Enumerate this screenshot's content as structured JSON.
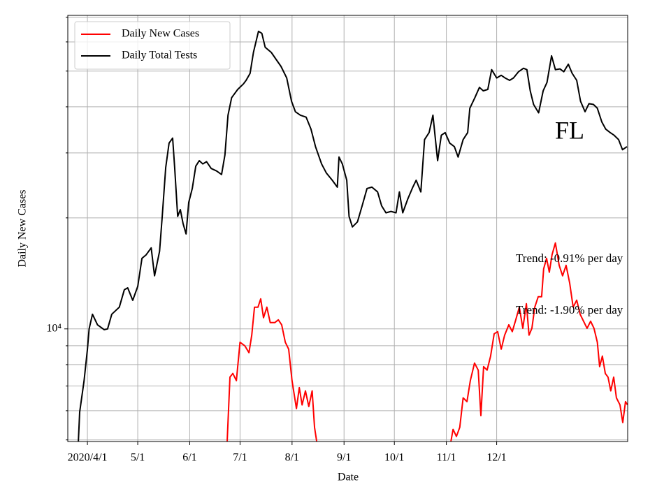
{
  "chart_data": {
    "type": "line",
    "xlabel": "Date",
    "ylabel": "Daily New Cases",
    "log_y": true,
    "grid": true,
    "legend": "upper left",
    "annotations": [
      "FL",
      "Trend: -0.91% per day",
      "Trend: -1.90% per day"
    ],
    "xlim": [
      -11.7,
      322.1
    ],
    "xticks": [
      {
        "value": 0,
        "label": "2020/4/1"
      },
      {
        "value": 30,
        "label": "5/1"
      },
      {
        "value": 61,
        "label": "6/1"
      },
      {
        "value": 91,
        "label": "7/1"
      },
      {
        "value": 122,
        "label": "8/1"
      },
      {
        "value": 153,
        "label": "9/1"
      },
      {
        "value": 183,
        "label": "10/1"
      },
      {
        "value": 214,
        "label": "11/1"
      },
      {
        "value": 244,
        "label": "12/1"
      }
    ],
    "ylim": [
      4950,
      70800
    ],
    "yticks": [
      {
        "value": 10000,
        "label": "10⁴"
      }
    ],
    "yminor": [
      5000,
      6000,
      7000,
      8000,
      9000,
      20000,
      30000,
      40000,
      50000,
      60000,
      70000
    ],
    "series": [
      {
        "name": "Daily New Cases",
        "color": "#ff0000",
        "x": [
          83.3,
          85,
          86.7,
          88.8,
          91,
          93.8,
          96.3,
          98,
          99.6,
          101.7,
          103.3,
          105,
          107,
          109,
          111.7,
          113.8,
          115.8,
          118,
          120,
          122,
          124.6,
          126.3,
          128,
          130,
          132,
          134,
          135.4,
          136.7,
          176,
          216.7,
          218,
          220,
          222,
          224,
          226.3,
          228.3,
          230.8,
          233,
          234.6,
          236.2,
          238.3,
          240.4,
          242.5,
          244.6,
          246.7,
          248.75,
          251.25,
          253.3,
          255.4,
          257.5,
          259.6,
          261.7,
          263.3,
          265,
          266.7,
          268.75,
          270.8,
          272,
          273.75,
          275.4,
          277,
          279,
          281.25,
          283.3,
          285.4,
          287.5,
          289.6,
          291.7,
          293.75,
          295.8,
          297.9,
          300,
          302,
          304,
          305.4,
          307,
          308.75,
          310.4,
          312,
          313.75,
          315.4,
          317.5,
          319.2,
          320.8,
          322
        ],
        "values": [
          4950,
          7400,
          7570,
          7240,
          9200,
          9000,
          8620,
          9620,
          11450,
          11450,
          12060,
          10720,
          11450,
          10400,
          10400,
          10580,
          10260,
          9200,
          8810,
          7240,
          6080,
          6930,
          6220,
          6790,
          6160,
          6790,
          5410,
          4950,
          null,
          4950,
          5340,
          5110,
          5410,
          6500,
          6350,
          7240,
          8080,
          7730,
          5820,
          7900,
          7730,
          8440,
          9700,
          9830,
          8810,
          9620,
          10260,
          9830,
          10580,
          11450,
          10040,
          11700,
          9620,
          10040,
          11450,
          12220,
          12220,
          14550,
          15530,
          14240,
          15880,
          17100,
          14870,
          13930,
          14870,
          13330,
          11450,
          11960,
          10960,
          10490,
          10040,
          10490,
          10040,
          9200,
          7900,
          8440,
          7570,
          7400,
          6790,
          7400,
          6500,
          6220,
          5570,
          6350,
          6220
        ]
      },
      {
        "name": "Daily Total Tests",
        "color": "#000000",
        "x": [
          -5.4,
          -4.6,
          -2,
          0,
          1,
          3,
          6,
          10,
          12,
          14.5,
          19,
          22,
          24,
          27,
          30,
          32.5,
          35,
          38,
          40,
          43,
          44.6,
          46.7,
          48.7,
          50.8,
          52,
          53.8,
          55.4,
          57,
          58.8,
          60.4,
          62.5,
          64.6,
          66.7,
          68.8,
          71,
          73.8,
          77,
          80,
          82,
          83.8,
          86,
          89.6,
          93,
          94.6,
          97,
          99,
          102,
          104,
          106,
          109.6,
          112.5,
          115.4,
          118.8,
          121.7,
          124,
          127,
          130.4,
          133.3,
          136,
          139.6,
          142.5,
          146,
          149,
          150,
          152,
          154.6,
          156,
          158,
          161,
          163.8,
          166.7,
          169.6,
          173,
          175.4,
          178,
          181,
          184,
          186,
          188,
          191,
          194,
          196,
          198.8,
          201,
          203.7,
          206,
          208.8,
          211,
          213.3,
          216,
          218.8,
          221,
          224,
          226.7,
          228,
          231,
          233.7,
          236,
          238.7,
          241,
          244,
          246.7,
          249,
          251.7,
          254,
          257,
          260,
          262,
          264,
          266,
          269,
          271.7,
          274,
          276.7,
          279,
          281.7,
          284,
          286.7,
          289,
          291.7,
          294,
          296.7,
          299,
          301.7,
          304,
          306.7,
          309,
          311.7,
          314,
          316.7,
          319,
          321.7
        ],
        "values": [
          4950,
          5950,
          7240,
          8810,
          10000,
          10960,
          10260,
          9950,
          10000,
          10960,
          11450,
          12770,
          12920,
          11950,
          13040,
          15530,
          15880,
          16580,
          13930,
          16230,
          20180,
          27380,
          31900,
          32900,
          27380,
          20180,
          21060,
          19300,
          18090,
          22030,
          24030,
          27620,
          28580,
          28000,
          28400,
          27220,
          26800,
          26220,
          29620,
          37970,
          42360,
          44600,
          46130,
          47200,
          49300,
          56200,
          64100,
          63300,
          58000,
          56200,
          53800,
          51500,
          47900,
          41400,
          38800,
          37970,
          37500,
          34810,
          31200,
          28000,
          26440,
          25290,
          24220,
          29240,
          28000,
          25290,
          20180,
          18900,
          19500,
          21560,
          24030,
          24220,
          23520,
          21560,
          20640,
          20820,
          20640,
          23520,
          20640,
          22490,
          24220,
          25290,
          23520,
          32600,
          34050,
          37970,
          28580,
          33500,
          34050,
          31900,
          31200,
          29240,
          32600,
          34050,
          39650,
          42360,
          45160,
          44200,
          44600,
          50440,
          47900,
          48700,
          47900,
          47200,
          47900,
          49800,
          50900,
          50440,
          44200,
          40600,
          38530,
          44200,
          46600,
          55000,
          50440,
          50700,
          49800,
          52200,
          49300,
          47200,
          41400,
          38800,
          40800,
          40600,
          39650,
          36400,
          34810,
          34050,
          33500,
          32600,
          30600,
          31200
        ]
      }
    ]
  }
}
